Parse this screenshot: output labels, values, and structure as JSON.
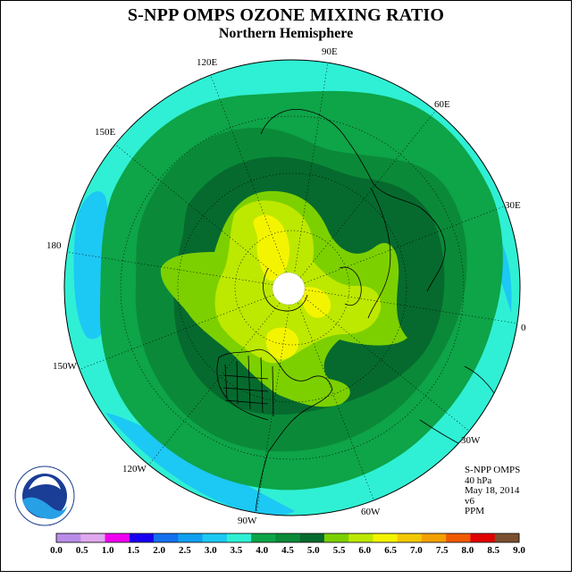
{
  "title": "S-NPP OMPS OZONE MIXING RATIO",
  "subtitle": "Northern Hemisphere",
  "longitude_labels": [
    "90E",
    "60E",
    "30E",
    "0",
    "30W",
    "60W",
    "90W",
    "120W",
    "150W",
    "180",
    "150E",
    "120E"
  ],
  "info": {
    "instrument": "S-NPP OMPS",
    "level": "40 hPa",
    "date": "May 18, 2014",
    "version": "v6",
    "units": "PPM"
  },
  "logo_text": "NOAA",
  "logo_ring_text": "NATIONAL OCEANIC AND ATMOSPHERIC ADMINISTRATION · U.S. DEPARTMENT OF COMMERCE",
  "colorbar": {
    "ticks": [
      "0.0",
      "0.5",
      "1.0",
      "1.5",
      "2.0",
      "2.5",
      "3.0",
      "3.5",
      "4.0",
      "4.5",
      "5.0",
      "5.5",
      "6.0",
      "6.5",
      "7.0",
      "7.5",
      "8.0",
      "8.5",
      "9.0"
    ],
    "colors": [
      "#b98ce8",
      "#e0a8ee",
      "#f000f0",
      "#1a00f0",
      "#1470ee",
      "#10a0f0",
      "#1cc8f4",
      "#2ff0d4",
      "#0ea448",
      "#0a8a38",
      "#066a2e",
      "#7cd000",
      "#bde800",
      "#f4f400",
      "#f4c800",
      "#f4a000",
      "#f05a00",
      "#e00000",
      "#7a5030"
    ]
  },
  "map_colors": {
    "c3": "#1cc8f4",
    "c35": "#2ff0d4",
    "c4": "#0ea448",
    "c45": "#0a8a38",
    "c5": "#066a2e",
    "c55": "#7cd000",
    "c6": "#bde800",
    "c65": "#f4f400"
  }
}
